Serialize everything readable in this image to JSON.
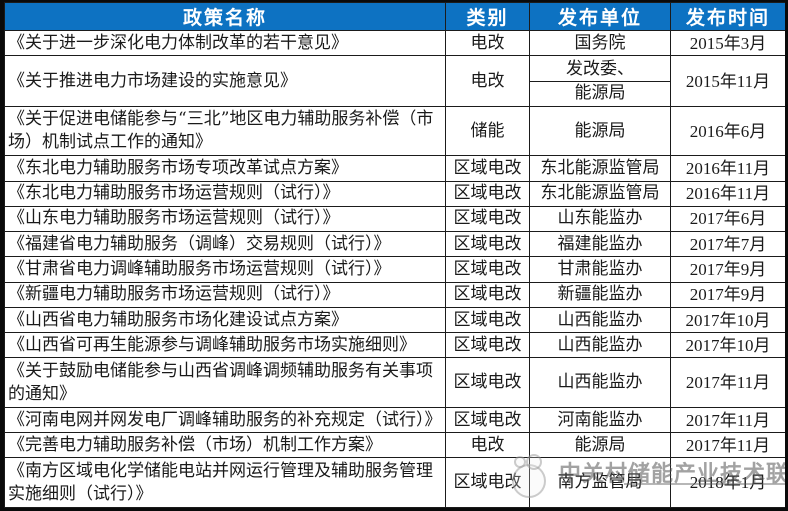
{
  "table": {
    "headers": [
      "政策名称",
      "类别",
      "发布单位",
      "发布时间"
    ],
    "rows": [
      {
        "name": "《关于进一步深化电力体制改革的若干意见》",
        "category": "电改",
        "unit": "国务院",
        "date": "2015年3月"
      },
      {
        "name": "《关于推进电力市场建设的实施意见》",
        "category": "电改",
        "unit": [
          "发改委、",
          "能源局"
        ],
        "date": "2015年11月"
      },
      {
        "name": "《关于促进电储能参与“三北”地区电力辅助服务补偿（市场）机制试点工作的通知》",
        "category": "储能",
        "unit": "能源局",
        "date": "2016年6月"
      },
      {
        "name": "《东北电力辅助服务市场专项改革试点方案》",
        "category": "区域电改",
        "unit": "东北能源监管局",
        "date": "2016年11月"
      },
      {
        "name": "《东北电力辅助服务市场运营规则（试行）》",
        "category": "区域电改",
        "unit": "东北能源监管局",
        "date": "2016年11月"
      },
      {
        "name": "《山东电力辅助服务市场运营规则（试行）》",
        "category": "区域电改",
        "unit": "山东能监办",
        "date": "2017年6月"
      },
      {
        "name": "《福建省电力辅助服务（调峰）交易规则（试行）》",
        "category": "区域电改",
        "unit": "福建能监办",
        "date": "2017年7月"
      },
      {
        "name": "《甘肃省电力调峰辅助服务市场运营规则（试行）》",
        "category": "区域电改",
        "unit": "甘肃能监办",
        "date": "2017年9月"
      },
      {
        "name": "《新疆电力辅助服务市场运营规则（试行）》",
        "category": "区域电改",
        "unit": "新疆能监办",
        "date": "2017年9月"
      },
      {
        "name": "《山西省电力辅助服务市场化建设试点方案》",
        "category": "区域电改",
        "unit": "山西能监办",
        "date": "2017年10月"
      },
      {
        "name": "《山西省可再生能源参与调峰辅助服务市场实施细则》",
        "category": "区域电改",
        "unit": "山西能监办",
        "date": "2017年10月"
      },
      {
        "name": "《关于鼓励电储能参与山西省调峰调频辅助服务有关事项的通知》",
        "category": "区域电改",
        "unit": "山西能监办",
        "date": "2017年11月"
      },
      {
        "name": "《河南电网并网发电厂调峰辅助服务的补充规定（试行）》",
        "category": "区域电改",
        "unit": "河南能监办",
        "date": "2017年11月"
      },
      {
        "name": "《完善电力辅助服务补偿（市场）机制工作方案》",
        "category": "电改",
        "unit": "能源局",
        "date": "2017年11月"
      },
      {
        "name": "《南方区域电化学储能电站并网运行管理及辅助服务管理实施细则（试行）》",
        "category": "区域电改",
        "unit": "南方监管局",
        "date": "2018年1月"
      }
    ]
  },
  "watermark": {
    "text": "中关村储能产业技术联盟"
  },
  "colors": {
    "header_bg": "#0d72c2",
    "header_text": "#ffffff",
    "border": "#1b1b1b",
    "watermark_gray": "#555555"
  }
}
